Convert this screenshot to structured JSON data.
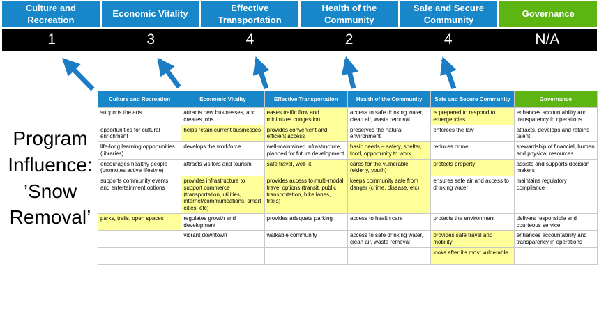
{
  "program_label": "Program Influence: ’Snow Removal’",
  "colors": {
    "header_blue": "#1787c9",
    "header_green": "#5cb510",
    "score_bg": "#000000",
    "highlight": "#ffff99",
    "arrow_blue": "#1c7cc4"
  },
  "scoreboard": [
    {
      "label": "Culture and Recreation",
      "score": "1",
      "green": false,
      "arrow": true
    },
    {
      "label": "Economic Vitality",
      "score": "3",
      "green": false,
      "arrow": true
    },
    {
      "label": "Effective Transportation",
      "score": "4",
      "green": false,
      "arrow": true
    },
    {
      "label": "Health of the Community",
      "score": "2",
      "green": false,
      "arrow": true
    },
    {
      "label": "Safe and Secure Community",
      "score": "4",
      "green": false,
      "arrow": true
    },
    {
      "label": "Governance",
      "score": "N/A",
      "green": true,
      "arrow": false
    }
  ],
  "matrix": {
    "headers": [
      {
        "label": "Culture and Recreation",
        "green": false
      },
      {
        "label": "Economic Vitality",
        "green": false
      },
      {
        "label": "Effective Transportation",
        "green": false
      },
      {
        "label": "Health of the Community",
        "green": false
      },
      {
        "label": "Safe and Secure Community",
        "green": false
      },
      {
        "label": "Governance",
        "green": true
      }
    ],
    "rows": [
      [
        {
          "t": "supports the arts"
        },
        {
          "t": "attracts new businesses, and creates jobs"
        },
        {
          "t": "eases traffic flow and minimizes congestion",
          "h": true
        },
        {
          "t": "access to safe drinking water, clean air, waste removal"
        },
        {
          "t": "is prepared to respond to emergencies",
          "h": true
        },
        {
          "t": "enhances accountability and transparency in operations"
        }
      ],
      [
        {
          "t": "opportunities for cultural enrichment"
        },
        {
          "t": "helps retain current businesses",
          "h": true
        },
        {
          "t": "provides convenient and efficient access",
          "h": true
        },
        {
          "t": "preserves the natural environment"
        },
        {
          "t": "enforces the law"
        },
        {
          "t": "attracts, develops and retains talent"
        }
      ],
      [
        {
          "t": "life-long learning opportunities (libraries)"
        },
        {
          "t": "develops the workforce"
        },
        {
          "t": "well-maintained infrastructure, planned for future development"
        },
        {
          "t": "basic needs – safety, shelter, food, opportunity to work",
          "h": true
        },
        {
          "t": "reduces crime"
        },
        {
          "t": "stewardship of financial, human and physical resources"
        }
      ],
      [
        {
          "t": "encourages healthy people (promotes active lifestyle)"
        },
        {
          "t": "attracts visitors and tourism"
        },
        {
          "t": "safe travel, well-lit",
          "h": true
        },
        {
          "t": "cares for the vulnerable (elderly, youth)",
          "h": true
        },
        {
          "t": "protects property",
          "h": true
        },
        {
          "t": "assists and supports decision makers"
        }
      ],
      [
        {
          "t": "supports community events, and entertainment options"
        },
        {
          "t": "provides infrastructure to support commerce (transportation, utilities, internet/communications, smart cities, etc)",
          "h": true
        },
        {
          "t": "provides access to multi-modal travel options (transit, public transportation, bike lanes, trails)",
          "h": true
        },
        {
          "t": "keeps community safe from danger (crime, disease, etc)",
          "h": true
        },
        {
          "t": "ensures safe air and access to drinking water"
        },
        {
          "t": "maintains regulatory compliance"
        }
      ],
      [
        {
          "t": "parks, trails, open spaces",
          "h": true
        },
        {
          "t": "regulates growth and development"
        },
        {
          "t": "provides adequate parking"
        },
        {
          "t": "access to health care"
        },
        {
          "t": "protects the environment"
        },
        {
          "t": "delivers responsible and courteous service"
        }
      ],
      [
        {
          "t": ""
        },
        {
          "t": "vibrant downtown"
        },
        {
          "t": "walkable community"
        },
        {
          "t": "access to safe drinking water, clean air, waste removal"
        },
        {
          "t": "provides safe travel and mobility",
          "h": true
        },
        {
          "t": "enhances accountability and transparency in operations"
        }
      ],
      [
        {
          "t": ""
        },
        {
          "t": ""
        },
        {
          "t": ""
        },
        {
          "t": ""
        },
        {
          "t": "looks after it's most vulnerable",
          "h": true
        },
        {
          "t": ""
        }
      ]
    ]
  }
}
